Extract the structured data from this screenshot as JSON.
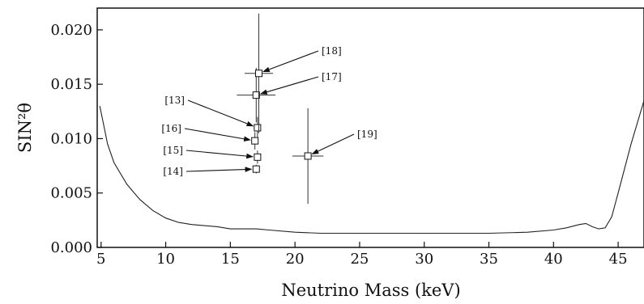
{
  "chart_data": {
    "type": "scatter",
    "title": "",
    "xlabel": "Neutrino Mass (keV)",
    "ylabel": "SIN²θ",
    "xlim": [
      4.7,
      47
    ],
    "ylim": [
      0,
      0.022
    ],
    "x_ticks": [
      5,
      10,
      15,
      20,
      25,
      30,
      35,
      40,
      45
    ],
    "y_ticks": [
      0.0,
      0.005,
      0.01,
      0.015,
      0.02
    ],
    "y_tick_labels": [
      "0.000",
      "0.005",
      "0.010",
      "0.015",
      "0.020"
    ],
    "grid": false,
    "limit_curve": {
      "x": [
        4.9,
        5.5,
        6,
        7,
        8,
        9,
        10,
        11,
        12,
        13,
        14,
        15,
        16,
        17,
        18,
        20,
        22,
        25,
        28,
        30,
        33,
        35,
        38,
        40,
        41,
        42,
        42.5,
        43,
        43.5,
        44,
        44.5,
        45,
        46,
        47
      ],
      "y": [
        0.013,
        0.0095,
        0.0078,
        0.0058,
        0.0044,
        0.0034,
        0.0027,
        0.0023,
        0.0021,
        0.002,
        0.0019,
        0.0017,
        0.0017,
        0.0017,
        0.0016,
        0.0014,
        0.0013,
        0.0013,
        0.0013,
        0.0013,
        0.0013,
        0.0013,
        0.0014,
        0.0016,
        0.0018,
        0.0021,
        0.0022,
        0.0019,
        0.0017,
        0.0018,
        0.0028,
        0.005,
        0.0095,
        0.0135
      ]
    },
    "points": [
      {
        "label": "[13]",
        "x": 17.1,
        "y": 0.011,
        "x_err": 0.2,
        "y_err": 0.001
      },
      {
        "label": "[14]",
        "x": 17.0,
        "y": 0.0072,
        "x_err": 0.2,
        "y_err": 0.0004
      },
      {
        "label": "[15]",
        "x": 17.1,
        "y": 0.0083,
        "x_err": 0.2,
        "y_err": 0.0006
      },
      {
        "label": "[16]",
        "x": 16.9,
        "y": 0.0098,
        "x_err": 0.2,
        "y_err": 0.0008
      },
      {
        "label": "[17]",
        "x": 17.0,
        "y": 0.014,
        "x_err": 1.5,
        "y_err": 0.0025
      },
      {
        "label": "[18]",
        "x": 17.2,
        "y": 0.016,
        "x_err": 1.1,
        "y_err": 0.0055
      },
      {
        "label": "[19]",
        "x": 21.0,
        "y": 0.0084,
        "x_err": 1.2,
        "y_err": 0.0044
      }
    ]
  }
}
